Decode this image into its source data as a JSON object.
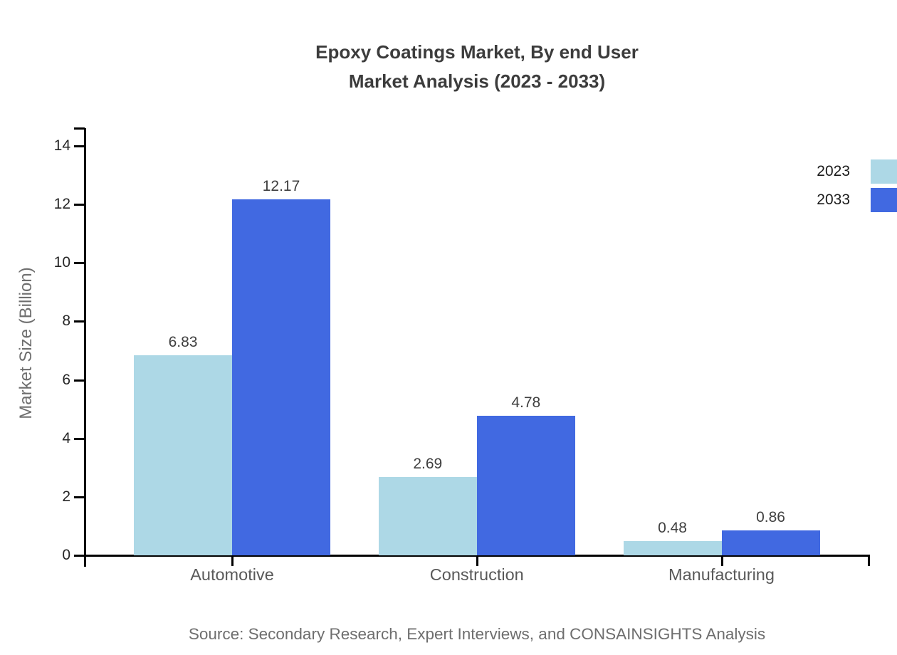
{
  "title": {
    "line1": "Epoxy Coatings Market, By end User",
    "line2": "Market Analysis (2023 - 2033)"
  },
  "source": "Source: Secondary Research, Expert Interviews, and CONSAINSIGHTS Analysis",
  "chart_data": {
    "type": "bar",
    "title": "Epoxy Coatings Market, By end User Market Analysis (2023 - 2033)",
    "categories": [
      "Automotive",
      "Construction",
      "Manufacturing"
    ],
    "series": [
      {
        "name": "2023",
        "color": "#ADD8E6",
        "values": [
          6.83,
          2.69,
          0.48
        ]
      },
      {
        "name": "2033",
        "color": "#4169E1",
        "values": [
          12.17,
          4.78,
          0.86
        ]
      }
    ],
    "xlabel": "",
    "ylabel": "Market Size (Billion)",
    "yticks": [
      0,
      2,
      4,
      6,
      8,
      10,
      12,
      14
    ],
    "ylim": [
      0,
      14.6
    ],
    "grid": false,
    "legend_position": "top-right",
    "value_labels": true
  }
}
